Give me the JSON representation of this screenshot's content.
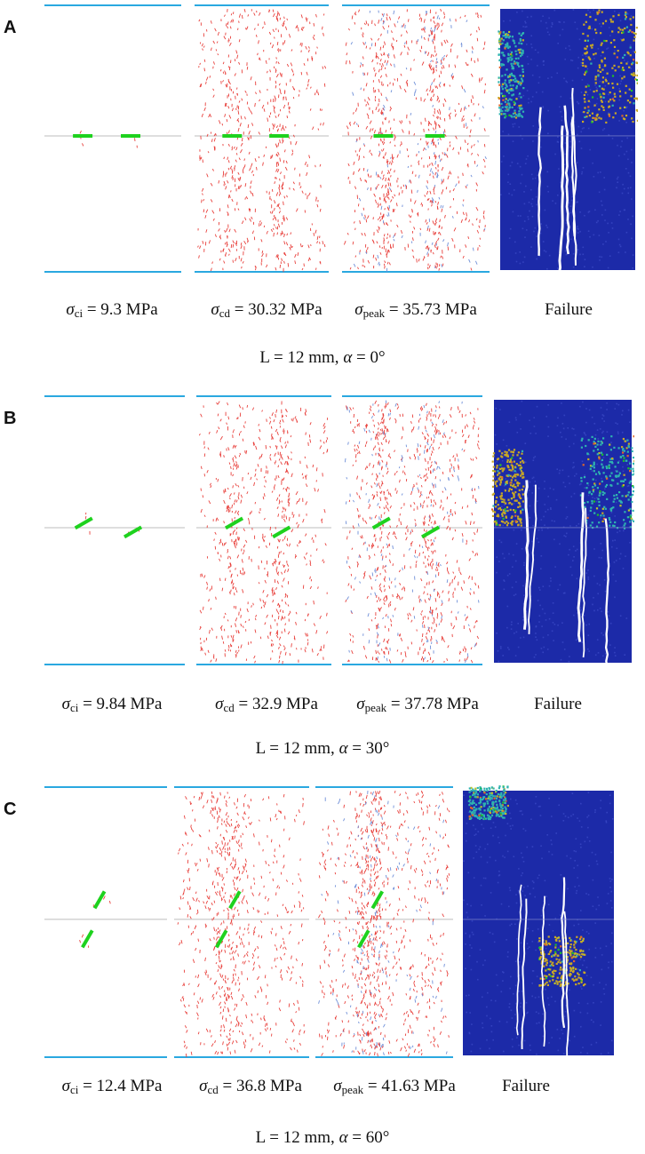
{
  "figure": {
    "panels": [
      {
        "letter": "A",
        "joint_angle_deg": 0,
        "stages": [
          {
            "symbol": "σ",
            "subscript": "ci",
            "text": " = 9.3 MPa",
            "value_mpa": 9.3
          },
          {
            "symbol": "σ",
            "subscript": "cd",
            "text": " = 30.32 MPa",
            "value_mpa": 30.32
          },
          {
            "symbol": "σ",
            "subscript": "peak",
            "text": " = 35.73 MPa",
            "value_mpa": 35.73
          },
          {
            "plain": "Failure"
          }
        ],
        "condition": {
          "prefix": "L = 12 mm, ",
          "symbol": "α",
          "suffix": " = 0°"
        }
      },
      {
        "letter": "B",
        "joint_angle_deg": 30,
        "stages": [
          {
            "symbol": "σ",
            "subscript": "ci",
            "text": " = 9.84 MPa",
            "value_mpa": 9.84
          },
          {
            "symbol": "σ",
            "subscript": "cd",
            "text": " = 32.9 MPa",
            "value_mpa": 32.9
          },
          {
            "symbol": "σ",
            "subscript": "peak",
            "text": " = 37.78 MPa",
            "value_mpa": 37.78
          },
          {
            "plain": "Failure"
          }
        ],
        "condition": {
          "prefix": "L = 12 mm, ",
          "symbol": "α",
          "suffix": " = 30°"
        }
      },
      {
        "letter": "C",
        "joint_angle_deg": 60,
        "stages": [
          {
            "symbol": "σ",
            "subscript": "ci",
            "text": " = 12.4 MPa",
            "value_mpa": 12.4
          },
          {
            "symbol": "σ",
            "subscript": "cd",
            "text": " = 36.8 MPa",
            "value_mpa": 36.8
          },
          {
            "symbol": "σ",
            "subscript": "peak",
            "text": " = 41.63 MPa",
            "value_mpa": 41.63
          },
          {
            "plain": "Failure"
          }
        ],
        "condition": {
          "prefix": "L = 12 mm, ",
          "symbol": "α",
          "suffix": " = 60°"
        }
      }
    ],
    "colors": {
      "platen": "#2aa8e0",
      "microcrack_tension": "#e8403c",
      "microcrack_shear": "#6f8fd8",
      "joint": "#1ed21e",
      "interface": "#bdbdbd",
      "fragment_base": "#1c2aa8",
      "fragment_palette": [
        "#c9a825",
        "#2fb3b0",
        "#1fbf2a",
        "#e0662a",
        "#bfc42a",
        "#ffffff"
      ]
    }
  }
}
